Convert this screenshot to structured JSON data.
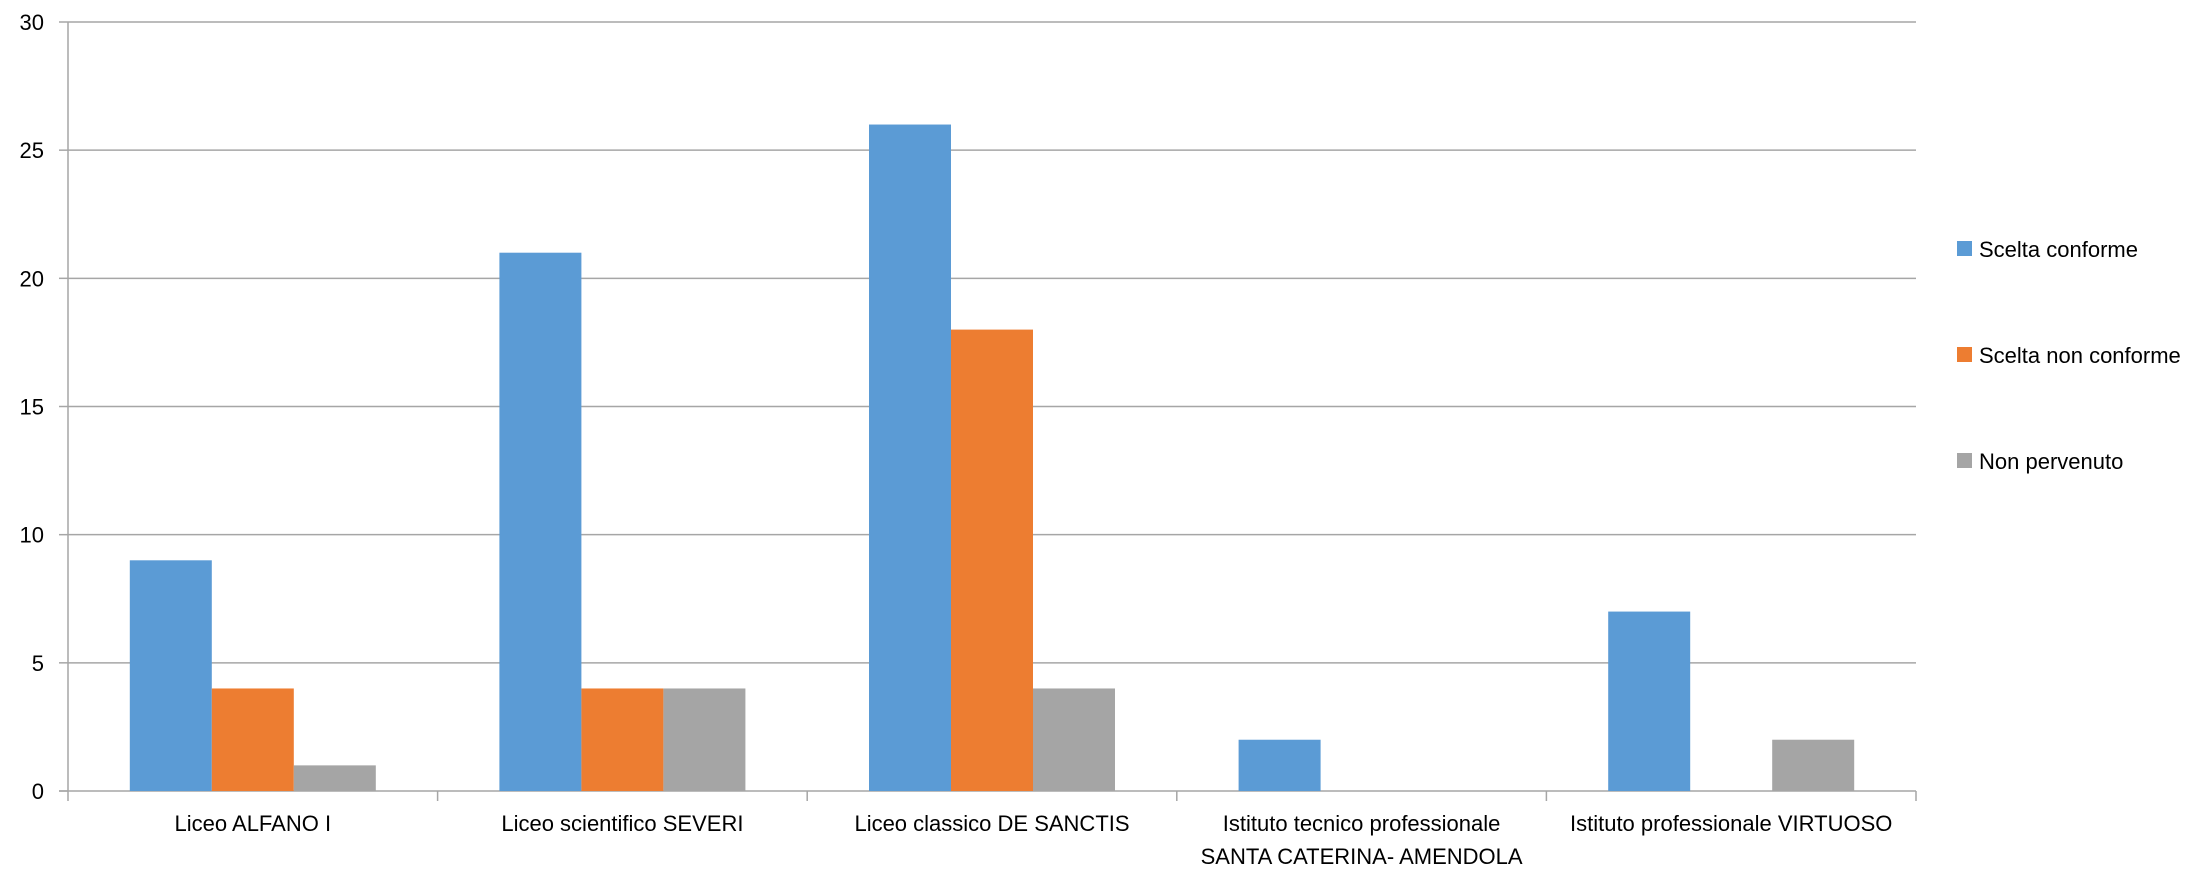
{
  "chart_data": {
    "type": "bar",
    "title": "",
    "xlabel": "",
    "ylabel": "",
    "ylim": [
      0,
      30
    ],
    "yticks": [
      0,
      5,
      10,
      15,
      20,
      25,
      30
    ],
    "grid": true,
    "legend_position": "right",
    "categories": [
      [
        "Liceo ALFANO I"
      ],
      [
        "Liceo scientifico SEVERI"
      ],
      [
        "Liceo classico DE SANCTIS"
      ],
      [
        "Istituto tecnico professionale",
        "SANTA CATERINA- AMENDOLA"
      ],
      [
        "Istituto professionale VIRTUOSO"
      ]
    ],
    "series": [
      {
        "name": "Scelta conforme",
        "color": "#5B9BD5",
        "values": [
          9,
          21,
          26,
          2,
          7
        ]
      },
      {
        "name": "Scelta non conforme",
        "color": "#ED7D31",
        "values": [
          4,
          4,
          18,
          0,
          0
        ]
      },
      {
        "name": "Non pervenuto",
        "color": "#A5A5A5",
        "values": [
          1,
          4,
          4,
          0,
          2
        ]
      }
    ]
  }
}
